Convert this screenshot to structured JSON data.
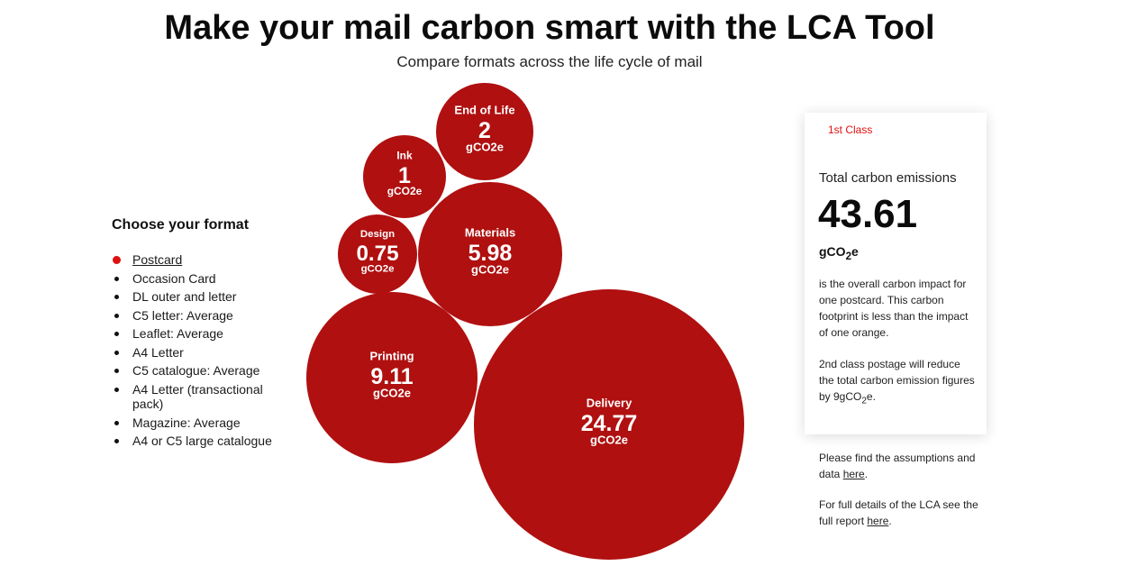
{
  "header": {
    "title": "Make your mail carbon smart with the LCA Tool",
    "subtitle": "Compare formats across the life cycle of mail"
  },
  "formats": {
    "heading": "Choose your format",
    "selected_index": 0,
    "items": [
      {
        "label": "Postcard"
      },
      {
        "label": "Occasion Card"
      },
      {
        "label": "DL outer and letter"
      },
      {
        "label": "C5 letter: Average"
      },
      {
        "label": "Leaflet: Average"
      },
      {
        "label": "A4 Letter"
      },
      {
        "label": "C5 catalogue: Average"
      },
      {
        "label": "A4 Letter (transactional pack)"
      },
      {
        "label": "Magazine: Average"
      },
      {
        "label": "A4 or C5 large catalogue"
      }
    ]
  },
  "chart_data": {
    "type": "bubble",
    "unit": "gCO2e",
    "series": [
      {
        "name": "End of Life",
        "value": "2"
      },
      {
        "name": "Ink",
        "value": "1"
      },
      {
        "name": "Design",
        "value": "0.75"
      },
      {
        "name": "Materials",
        "value": "5.98"
      },
      {
        "name": "Printing",
        "value": "9.11"
      },
      {
        "name": "Delivery",
        "value": "24.77"
      }
    ],
    "color": "#b01010"
  },
  "card": {
    "tab_label": "1st Class",
    "total_label": "Total carbon emissions",
    "total_value": "43.61",
    "unit_prefix": "gCO",
    "unit_sub": "2",
    "unit_suffix": "e",
    "description_1": "is the overall carbon impact for one postcard. This carbon footprint is less than the impact of one orange.",
    "description_2_prefix": "2nd class postage will reduce the total carbon emission figures by 9gCO",
    "description_2_sub": "2",
    "description_2_suffix": "e."
  },
  "notes": {
    "assumptions_prefix": "Please find the assumptions and data ",
    "assumptions_link": "here",
    "assumptions_suffix": ".",
    "report_prefix": "For full details of the LCA see the full report ",
    "report_link": "here",
    "report_suffix": "."
  },
  "colors": {
    "accent": "#e01010",
    "bubble": "#b01010"
  }
}
